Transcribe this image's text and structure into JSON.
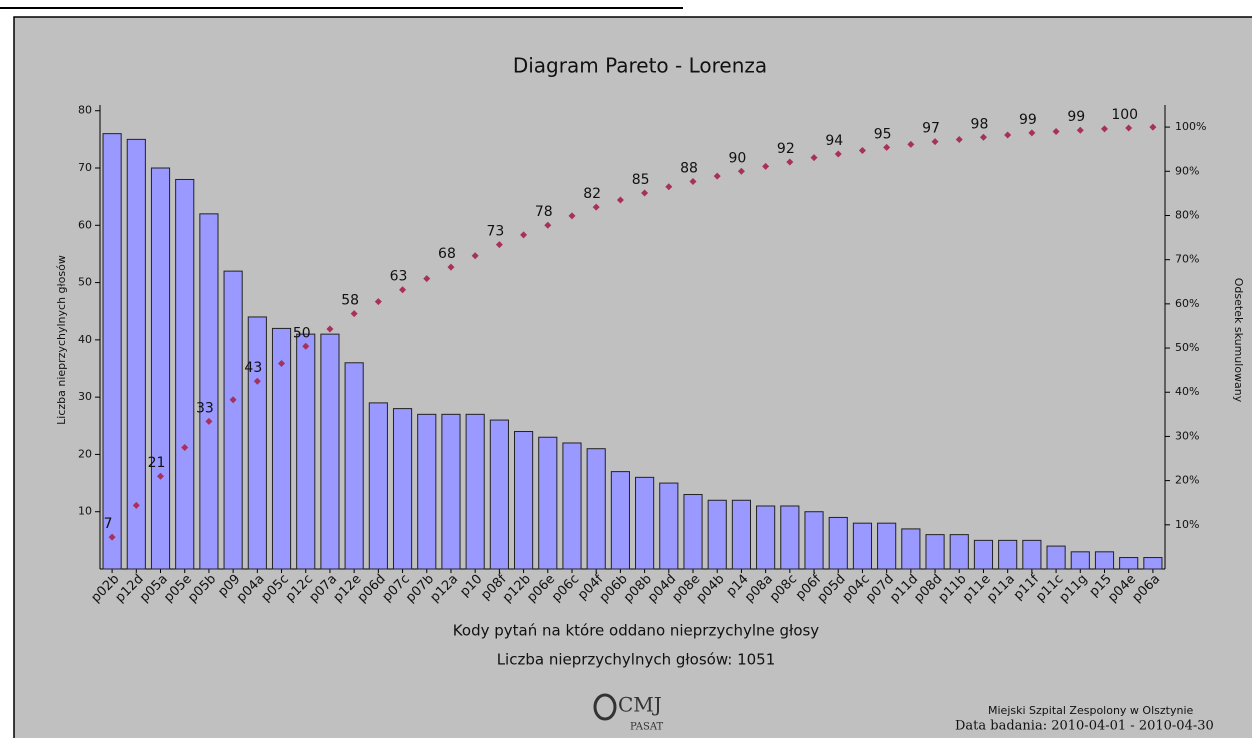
{
  "chart_data": {
    "type": "pareto",
    "title": "Diagram Pareto - Lorenza",
    "x_label": "Kody pytań na które oddano nieprzychylne głosy",
    "subtitle": "Liczba nieprzychylnych głosów: 1051",
    "y_label": "Liczba nieprzychylnych głosów",
    "y2_label": "Odsetek skumulowany",
    "categories": [
      "p02b",
      "p12d",
      "p05a",
      "p05e",
      "p05b",
      "p09",
      "p04a",
      "p05c",
      "p12c",
      "p07a",
      "p12e",
      "p06d",
      "p07c",
      "p07b",
      "p12a",
      "p10",
      "p08f",
      "p12b",
      "p06e",
      "p06c",
      "p04f",
      "p06b",
      "p08b",
      "p04d",
      "p08e",
      "p04b",
      "p14",
      "p08a",
      "p08c",
      "p06f",
      "p05d",
      "p04c",
      "p07d",
      "p11d",
      "p08d",
      "p11b",
      "p11e",
      "p11a",
      "p11f",
      "p11c",
      "p11g",
      "p15",
      "p04e",
      "p06a"
    ],
    "series": [
      {
        "type": "bar",
        "color": "#9999ff",
        "values": [
          76,
          75,
          70,
          68,
          62,
          52,
          44,
          42,
          41,
          41,
          36,
          29,
          28,
          27,
          27,
          27,
          26,
          24,
          23,
          22,
          21,
          17,
          16,
          15,
          13,
          12,
          12,
          11,
          11,
          10,
          9,
          8,
          8,
          7,
          6,
          6,
          5,
          5,
          5,
          4,
          3,
          3,
          2,
          2
        ]
      },
      {
        "type": "scatter",
        "axis": "y2",
        "color": "#a8305c",
        "values": [
          7.2,
          14.4,
          21.0,
          27.5,
          33.4,
          38.3,
          42.5,
          46.5,
          50.4,
          54.3,
          57.8,
          60.5,
          63.2,
          65.7,
          68.3,
          70.9,
          73.4,
          75.6,
          77.8,
          79.9,
          81.9,
          83.5,
          85.1,
          86.5,
          87.7,
          88.9,
          90.0,
          91.1,
          92.1,
          93.1,
          93.9,
          94.7,
          95.4,
          96.1,
          96.7,
          97.2,
          97.7,
          98.2,
          98.7,
          99.0,
          99.3,
          99.6,
          99.8,
          100.0
        ],
        "value_labels": [
          "7",
          null,
          "21",
          null,
          "33",
          null,
          "43",
          null,
          "50",
          null,
          "58",
          null,
          "63",
          null,
          "68",
          null,
          "73",
          null,
          "78",
          null,
          "82",
          null,
          "85",
          null,
          "88",
          null,
          "90",
          null,
          "92",
          null,
          "94",
          null,
          "95",
          null,
          "97",
          null,
          "98",
          null,
          "99",
          null,
          "99",
          null,
          "100",
          null
        ]
      }
    ],
    "ylim": [
      0,
      81
    ],
    "yticks": [
      10,
      20,
      30,
      40,
      50,
      60,
      70,
      80
    ],
    "y2lim": [
      0,
      105
    ],
    "y2ticks": [
      {
        "value": 10,
        "label": "10%"
      },
      {
        "value": 20,
        "label": "20%"
      },
      {
        "value": 30,
        "label": "30%"
      },
      {
        "value": 40,
        "label": "40%"
      },
      {
        "value": 50,
        "label": "50%"
      },
      {
        "value": 60,
        "label": "60%"
      },
      {
        "value": 70,
        "label": "70%"
      },
      {
        "value": 80,
        "label": "80%"
      },
      {
        "value": 90,
        "label": "90%"
      },
      {
        "value": 100,
        "label": "100%"
      }
    ]
  },
  "footer": {
    "logo": "CMJ",
    "logo_sub": "PASAT",
    "hospital": "Miejski Szpital Zespolony w Olsztynie",
    "date": "Data badania: 2010-04-01 - 2010-04-30"
  }
}
